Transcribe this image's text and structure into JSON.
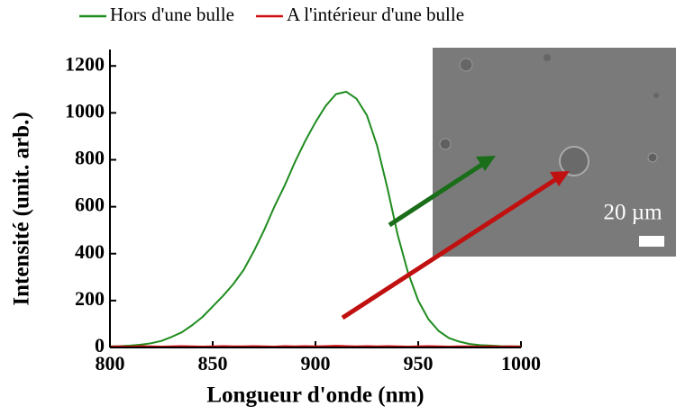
{
  "chart_data": {
    "type": "line",
    "xlabel": "Longueur d'onde (nm)",
    "ylabel": "Intensité (unit. arb.)",
    "x": [
      800,
      805,
      810,
      815,
      820,
      825,
      830,
      835,
      840,
      845,
      850,
      855,
      860,
      865,
      870,
      875,
      880,
      885,
      890,
      895,
      900,
      905,
      910,
      915,
      920,
      925,
      930,
      935,
      940,
      945,
      950,
      955,
      960,
      965,
      970,
      975,
      980,
      985,
      990,
      995,
      1000
    ],
    "series": [
      {
        "name": "Hors d'une bulle",
        "color": "#1f8c1f",
        "values": [
          5,
          6,
          8,
          12,
          18,
          28,
          45,
          65,
          95,
          130,
          175,
          220,
          270,
          330,
          410,
          500,
          600,
          690,
          790,
          880,
          960,
          1030,
          1080,
          1090,
          1060,
          990,
          860,
          680,
          480,
          320,
          200,
          120,
          70,
          40,
          25,
          15,
          10,
          8,
          6,
          5,
          5
        ]
      },
      {
        "name": "A l'intérieur d'une bulle",
        "color": "#d01010",
        "values": [
          4,
          5,
          4,
          6,
          5,
          4,
          5,
          6,
          5,
          4,
          5,
          6,
          5,
          5,
          6,
          5,
          4,
          6,
          5,
          6,
          5,
          6,
          7,
          6,
          5,
          6,
          5,
          6,
          5,
          4,
          5,
          6,
          5,
          4,
          5,
          5,
          4,
          5,
          4,
          5,
          4
        ]
      }
    ],
    "xlim": [
      800,
      1000
    ],
    "xticks": [
      800,
      850,
      900,
      950,
      1000
    ],
    "ylim": [
      0,
      1270
    ],
    "yticks": [
      0,
      200,
      400,
      600,
      800,
      1000,
      1200
    ],
    "legend": "top",
    "annotations": [
      "20 µm"
    ]
  }
}
